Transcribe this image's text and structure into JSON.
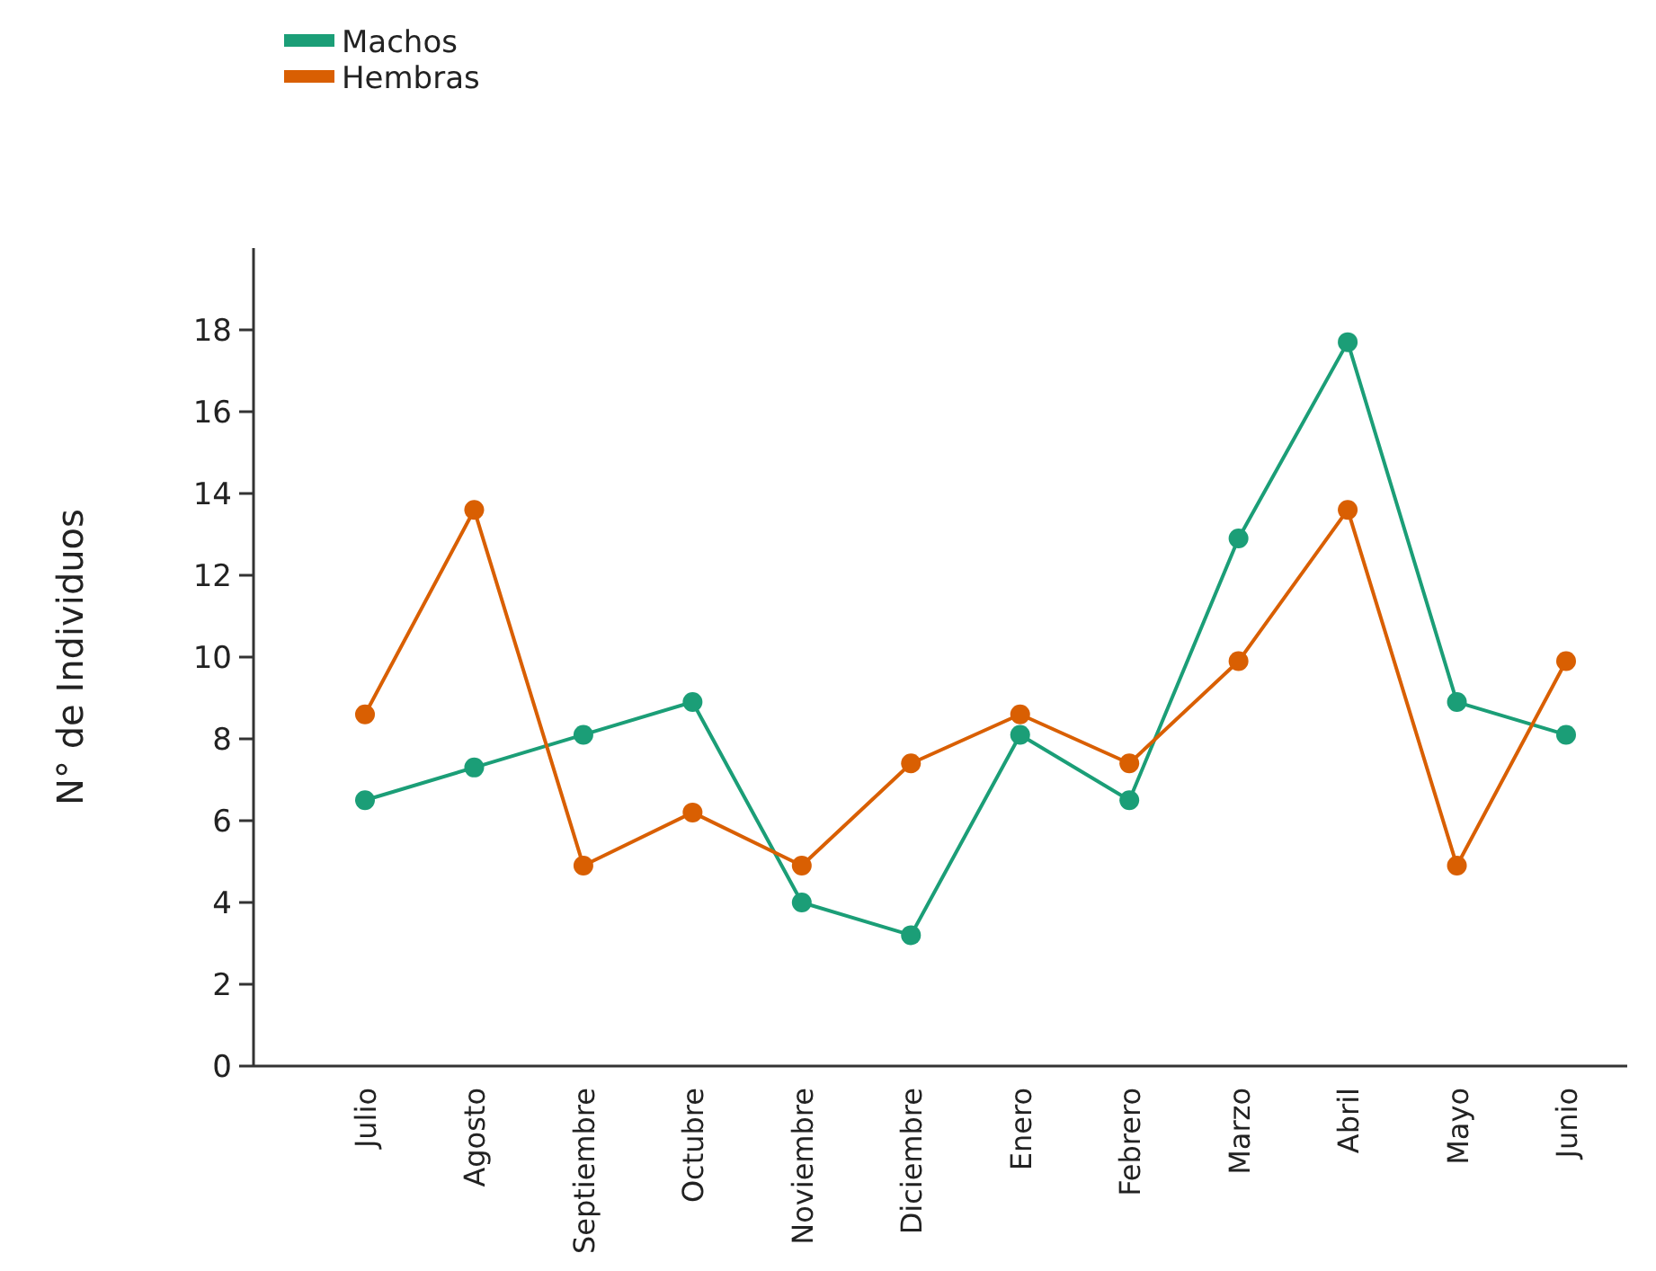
{
  "chart_data": {
    "type": "line",
    "ylabel": "N° de Individuos",
    "categories": [
      "Julio",
      "Agosto",
      "Septiembre",
      "Octubre",
      "Noviembre",
      "Diciembre",
      "Enero",
      "Febrero",
      "Marzo",
      "Abril",
      "Mayo",
      "Junio"
    ],
    "series": [
      {
        "name": "Machos",
        "color": "#1b9e77",
        "values": [
          6.5,
          7.3,
          8.1,
          8.9,
          4.0,
          3.2,
          8.1,
          6.5,
          12.9,
          17.7,
          8.9,
          8.1
        ]
      },
      {
        "name": "Hembras",
        "color": "#d95f02",
        "values": [
          8.6,
          13.6,
          4.9,
          6.2,
          4.9,
          7.4,
          8.6,
          7.4,
          9.9,
          13.6,
          4.9,
          9.9
        ]
      }
    ],
    "ylim": [
      0,
      20
    ],
    "yticks": [
      0,
      2,
      4,
      6,
      8,
      10,
      12,
      14,
      16,
      18
    ],
    "grid": false,
    "legend": "top left",
    "marker": "circle",
    "line_style": "solid"
  }
}
